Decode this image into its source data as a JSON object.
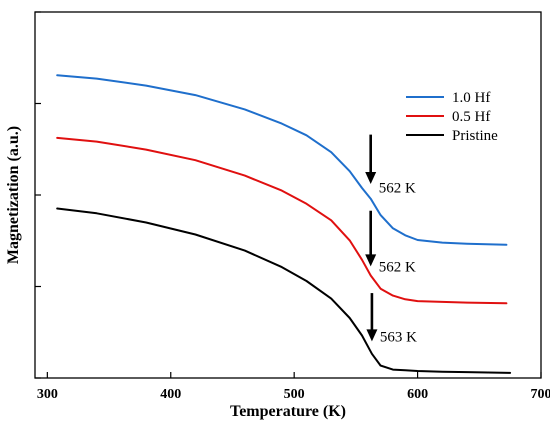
{
  "chart_data": {
    "type": "line",
    "title": "",
    "xlabel": "Temperature (K)",
    "ylabel": "Magnetization (a.u.)",
    "xlim": [
      290,
      700
    ],
    "ylim": [
      0,
      100
    ],
    "xticks": [
      300,
      400,
      500,
      600,
      700
    ],
    "xtick_labels": [
      "300",
      "400",
      "500",
      "600",
      "700"
    ],
    "yticks": [
      0,
      25,
      50,
      75,
      100
    ],
    "show_y_tick_labels": false,
    "grid": false,
    "legend_position": "right",
    "series": [
      {
        "name": "1.0 Hf",
        "color": "#1f6fcc",
        "x": [
          308,
          340,
          380,
          420,
          460,
          490,
          510,
          530,
          545,
          555,
          562,
          570,
          580,
          590,
          600,
          620,
          640,
          672
        ],
        "y": [
          82.7,
          81.8,
          79.9,
          77.3,
          73.4,
          69.5,
          66.3,
          61.7,
          56.5,
          51.9,
          49.0,
          44.5,
          40.9,
          39.0,
          37.7,
          37.0,
          36.7,
          36.4
        ]
      },
      {
        "name": "0.5 Hf",
        "color": "#e01010",
        "x": [
          308,
          340,
          380,
          420,
          460,
          490,
          510,
          530,
          545,
          555,
          562,
          570,
          580,
          590,
          600,
          620,
          640,
          672
        ],
        "y": [
          65.6,
          64.6,
          62.4,
          59.5,
          55.3,
          51.2,
          47.6,
          43.1,
          37.6,
          32.3,
          28.0,
          24.4,
          22.5,
          21.5,
          21.0,
          20.8,
          20.6,
          20.4
        ]
      },
      {
        "name": "Pristine",
        "color": "#000000",
        "x": [
          308,
          340,
          380,
          420,
          460,
          490,
          510,
          530,
          545,
          555,
          563,
          570,
          580,
          590,
          600,
          620,
          640,
          675
        ],
        "y": [
          46.3,
          45.0,
          42.5,
          39.2,
          34.8,
          30.3,
          26.5,
          21.7,
          16.4,
          11.6,
          6.6,
          3.4,
          2.3,
          2.1,
          1.9,
          1.7,
          1.6,
          1.4
        ]
      }
    ],
    "annotations": [
      {
        "text": "562 K",
        "x": 562,
        "arrow_from_y": 66.5,
        "arrow_to_y": 53.0,
        "label_y": 52.0
      },
      {
        "text": "562 K",
        "x": 562,
        "arrow_from_y": 45.7,
        "arrow_to_y": 30.5,
        "label_y": 30.5
      },
      {
        "text": "563 K",
        "x": 563,
        "arrow_from_y": 23.2,
        "arrow_to_y": 10.0,
        "label_y": 11.3
      }
    ]
  }
}
